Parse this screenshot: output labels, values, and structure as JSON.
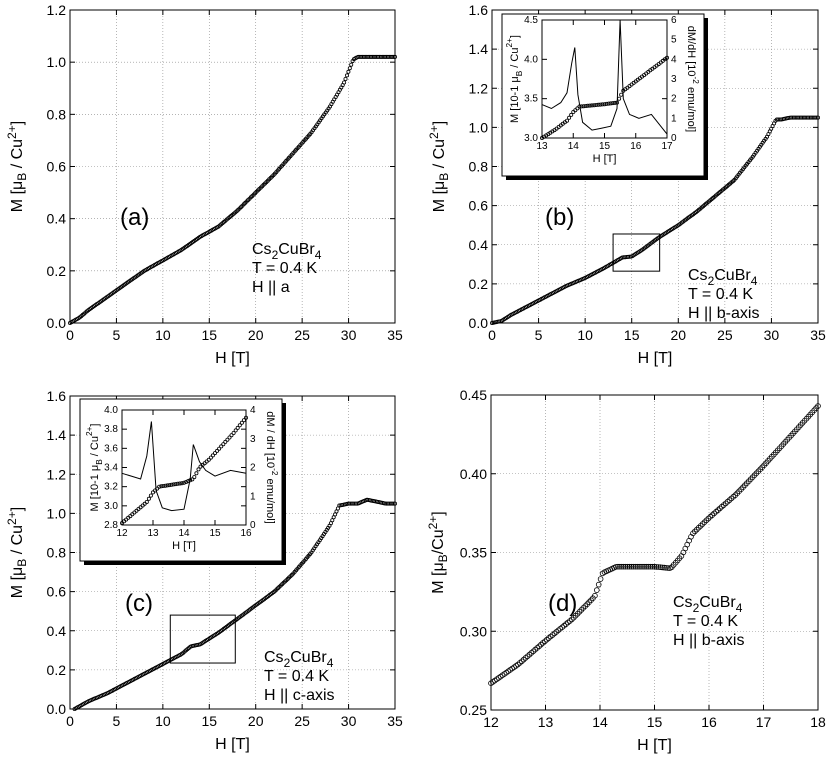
{
  "chart_data": [
    {
      "id": "a",
      "type": "scatter",
      "panel_label": "(a)",
      "xlabel": "H [T]",
      "ylabel": "M [μB / Cu2+]",
      "xlim": [
        0,
        35
      ],
      "ylim": [
        0,
        1.2
      ],
      "xticks": [
        "0",
        "5",
        "10",
        "15",
        "20",
        "25",
        "30",
        "35"
      ],
      "yticks": [
        "0.0",
        "0.2",
        "0.4",
        "0.6",
        "0.8",
        "1.0",
        "1.2"
      ],
      "grid": true,
      "annotation": [
        "Cs2CuBr4",
        "T = 0.4 K",
        "H || a"
      ],
      "series": [
        {
          "name": "M(H)",
          "x": [
            0,
            1,
            2,
            4,
            6,
            8,
            10,
            12,
            14,
            16,
            18,
            20,
            22,
            24,
            26,
            28,
            29.5,
            30.5,
            31,
            32,
            33,
            34,
            35
          ],
          "y": [
            0.0,
            0.02,
            0.05,
            0.1,
            0.15,
            0.2,
            0.24,
            0.28,
            0.33,
            0.37,
            0.43,
            0.5,
            0.57,
            0.65,
            0.73,
            0.83,
            0.92,
            1.01,
            1.02,
            1.02,
            1.02,
            1.02,
            1.02
          ]
        }
      ]
    },
    {
      "id": "b",
      "type": "scatter",
      "panel_label": "(b)",
      "xlabel": "H [T]",
      "ylabel": "M [μB / Cu2+]",
      "xlim": [
        0,
        35
      ],
      "ylim": [
        0,
        1.6
      ],
      "xticks": [
        "0",
        "5",
        "10",
        "15",
        "20",
        "25",
        "30",
        "35"
      ],
      "yticks": [
        "0.0",
        "0.2",
        "0.4",
        "0.6",
        "0.8",
        "1.0",
        "1.2",
        "1.4",
        "1.6"
      ],
      "grid": true,
      "annotation": [
        "Cs2CuBr4",
        "T = 0.4 K",
        "H || b-axis"
      ],
      "series": [
        {
          "name": "M(H)",
          "x": [
            0,
            1,
            2,
            4,
            6,
            8,
            10,
            12,
            14,
            15,
            16,
            18,
            20,
            22,
            24,
            26,
            28,
            29.5,
            30.5,
            31,
            32,
            33,
            34,
            35
          ],
          "y": [
            0.0,
            0.01,
            0.04,
            0.09,
            0.14,
            0.19,
            0.23,
            0.28,
            0.335,
            0.34,
            0.37,
            0.44,
            0.5,
            0.57,
            0.65,
            0.73,
            0.85,
            0.95,
            1.04,
            1.04,
            1.05,
            1.05,
            1.05,
            1.05
          ]
        }
      ],
      "inset": {
        "xlabel": "H [T]",
        "ylabel_left": "M [10-1 μB / Cu2+]",
        "ylabel_right": "dM/dH [10-2 emu/mol]",
        "xlim": [
          13,
          17
        ],
        "ylim_left": [
          3.0,
          4.5
        ],
        "ylim_right": [
          0,
          6
        ],
        "xticks": [
          "13",
          "14",
          "15",
          "16",
          "17"
        ],
        "yticks_left": [
          "3.0",
          "3.5",
          "4.0",
          "4.5"
        ],
        "yticks_right": [
          "0",
          "1",
          "2",
          "3",
          "4",
          "5",
          "6"
        ],
        "series": [
          {
            "name": "M (circles)",
            "x": [
              13,
              13.4,
              13.8,
              14.0,
              14.2,
              14.5,
              15.0,
              15.4,
              15.6,
              15.8,
              16.2,
              16.6,
              17.0
            ],
            "y": [
              3.0,
              3.1,
              3.22,
              3.33,
              3.4,
              3.41,
              3.43,
              3.45,
              3.6,
              3.66,
              3.78,
              3.9,
              4.02
            ]
          },
          {
            "name": "dM/dH (line)",
            "x": [
              13.0,
              13.3,
              13.6,
              13.8,
              13.95,
              14.05,
              14.15,
              14.3,
              14.6,
              14.9,
              15.2,
              15.4,
              15.5,
              15.6,
              15.8,
              16.1,
              16.5,
              17.0
            ],
            "y": [
              1.7,
              1.5,
              1.8,
              2.3,
              3.8,
              4.6,
              2.2,
              0.8,
              0.4,
              0.5,
              0.6,
              1.5,
              6.0,
              2.0,
              1.2,
              1.0,
              1.2,
              0.2
            ]
          }
        ]
      }
    },
    {
      "id": "c",
      "type": "scatter",
      "panel_label": "(c)",
      "xlabel": "H [T]",
      "ylabel": "M [μB / Cu2+]",
      "xlim": [
        0,
        35
      ],
      "ylim": [
        0,
        1.6
      ],
      "xticks": [
        "0",
        "5",
        "10",
        "15",
        "20",
        "25",
        "30",
        "35"
      ],
      "yticks": [
        "0.0",
        "0.2",
        "0.4",
        "0.6",
        "0.8",
        "1.0",
        "1.2",
        "1.4",
        "1.6"
      ],
      "grid": true,
      "annotation": [
        "Cs2CuBr4",
        "T = 0.4 K",
        "H || c-axis"
      ],
      "series": [
        {
          "name": "M(H)",
          "x": [
            0.5,
            2,
            4,
            6,
            8,
            10,
            12,
            13,
            14,
            16,
            18,
            20,
            22,
            24,
            26,
            28,
            29,
            30,
            31,
            32,
            33,
            34,
            35
          ],
          "y": [
            0.0,
            0.04,
            0.08,
            0.13,
            0.18,
            0.23,
            0.28,
            0.32,
            0.33,
            0.39,
            0.46,
            0.53,
            0.6,
            0.69,
            0.8,
            0.94,
            1.04,
            1.05,
            1.05,
            1.07,
            1.06,
            1.05,
            1.05
          ]
        }
      ],
      "inset": {
        "xlabel": "H [T]",
        "ylabel_left": "M [10-1 μB / Cu2+]",
        "ylabel_right": "dM / dH [10-2 emu/mol]",
        "xlim": [
          12,
          16
        ],
        "ylim_left": [
          2.8,
          4.0
        ],
        "ylim_right": [
          0,
          4
        ],
        "xticks": [
          "12",
          "13",
          "14",
          "15",
          "16"
        ],
        "yticks_left": [
          "2.8",
          "3.0",
          "3.2",
          "3.4",
          "3.6",
          "3.8",
          "4.0"
        ],
        "yticks_right": [
          "0",
          "1",
          "2",
          "3",
          "4"
        ],
        "series": [
          {
            "name": "M (circles)",
            "x": [
              12.0,
              12.4,
              12.8,
              13.0,
              13.2,
              13.6,
              14.0,
              14.3,
              14.5,
              14.8,
              15.2,
              15.6,
              16.0
            ],
            "y": [
              2.82,
              2.93,
              3.04,
              3.14,
              3.2,
              3.22,
              3.24,
              3.28,
              3.4,
              3.48,
              3.62,
              3.76,
              3.92
            ]
          },
          {
            "name": "dM/dH (line)",
            "x": [
              12.0,
              12.3,
              12.6,
              12.8,
              12.95,
              13.1,
              13.3,
              13.6,
              14.0,
              14.2,
              14.3,
              14.4,
              14.5,
              14.7,
              15.0,
              15.5,
              16.0
            ],
            "y": [
              1.8,
              1.7,
              1.6,
              2.4,
              3.6,
              1.2,
              0.6,
              0.5,
              0.55,
              1.6,
              2.8,
              2.5,
              2.2,
              1.9,
              1.7,
              1.9,
              1.8
            ]
          }
        ]
      }
    },
    {
      "id": "d",
      "type": "scatter",
      "panel_label": "(d)",
      "xlabel": "H [T]",
      "ylabel": "M [μB/Cu2+]",
      "xlim": [
        12,
        18
      ],
      "ylim": [
        0.25,
        0.45
      ],
      "xticks": [
        "12",
        "13",
        "14",
        "15",
        "16",
        "17",
        "18"
      ],
      "yticks": [
        "0.25",
        "0.30",
        "0.35",
        "0.40",
        "0.45"
      ],
      "grid": true,
      "annotation": [
        "Cs2CuBr4",
        "T = 0.4 K",
        "H || b-axis"
      ],
      "series": [
        {
          "name": "M(H)",
          "x": [
            12.0,
            12.5,
            13.0,
            13.5,
            13.9,
            14.05,
            14.3,
            14.6,
            15.0,
            15.3,
            15.5,
            15.7,
            16.0,
            16.5,
            17.0,
            17.5,
            18.0
          ],
          "y": [
            0.267,
            0.279,
            0.294,
            0.308,
            0.322,
            0.337,
            0.341,
            0.341,
            0.341,
            0.34,
            0.348,
            0.362,
            0.372,
            0.387,
            0.405,
            0.424,
            0.443
          ]
        }
      ]
    }
  ]
}
